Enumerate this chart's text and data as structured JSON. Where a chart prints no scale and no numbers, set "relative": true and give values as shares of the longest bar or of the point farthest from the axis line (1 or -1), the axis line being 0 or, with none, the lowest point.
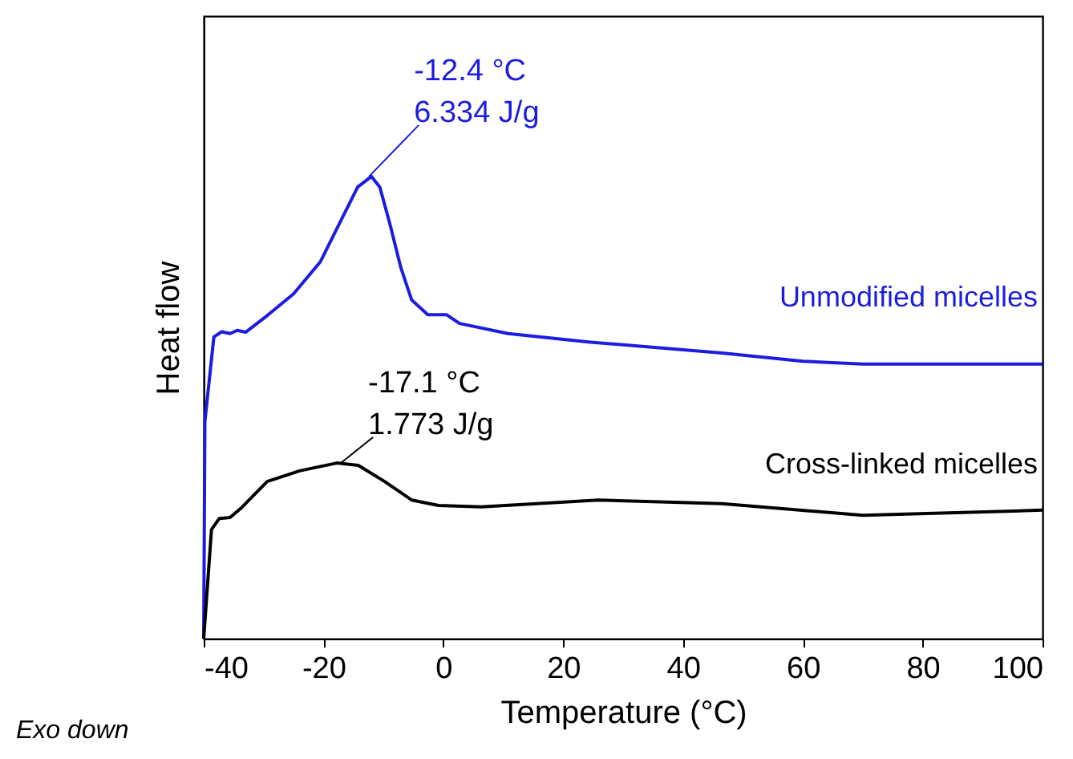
{
  "chart_data": {
    "type": "line",
    "relative": true,
    "xlabel": "Temperature (°C)",
    "ylabel": "Heat flow",
    "xlim": [
      -40,
      100
    ],
    "xticks": [
      -40,
      -20,
      0,
      20,
      40,
      60,
      80,
      100
    ],
    "grid": false,
    "line_style": "solid",
    "marker": "none",
    "series": [
      {
        "name": "Unmodified micelles",
        "color": "#1c1ce0",
        "x": [
          -40,
          -39.8,
          -38.3,
          -37.0,
          -35.6,
          -34.4,
          -33.0,
          -29.4,
          -25.0,
          -20.5,
          -17.0,
          -14.3,
          -12.0,
          -10.6,
          -8.9,
          -7.1,
          -5.3,
          -2.6,
          0.5,
          2.7,
          10.8,
          24.2,
          46.5,
          60,
          70,
          100
        ],
        "values": [
          0,
          0.47,
          0.653,
          0.664,
          0.66,
          0.667,
          0.663,
          0.699,
          0.746,
          0.816,
          0.907,
          0.977,
          1.0,
          0.977,
          0.896,
          0.803,
          0.733,
          0.701,
          0.701,
          0.682,
          0.66,
          0.642,
          0.618,
          0.6,
          0.594,
          0.594
        ]
      },
      {
        "name": "Cross-linked micelles",
        "color": "#000000",
        "x": [
          -40,
          -38.7,
          -37.4,
          -35.6,
          -33.8,
          -29.4,
          -24.0,
          -17.8,
          -14.2,
          -9.8,
          -5.3,
          -0.8,
          6.3,
          25.9,
          46.5,
          70,
          100
        ],
        "values": [
          0,
          0.236,
          0.26,
          0.262,
          0.282,
          0.34,
          0.363,
          0.38,
          0.375,
          0.34,
          0.3,
          0.288,
          0.285,
          0.3,
          0.292,
          0.267,
          0.278
        ]
      }
    ],
    "annotations": [
      {
        "text": "-12.4 °C\n6.334 J/g",
        "x": -12.4,
        "y": 1.0
      },
      {
        "text": "-17.1 °C\n1.773 J/g",
        "x": -17.1,
        "y": 0.38
      },
      "Exo down"
    ]
  }
}
